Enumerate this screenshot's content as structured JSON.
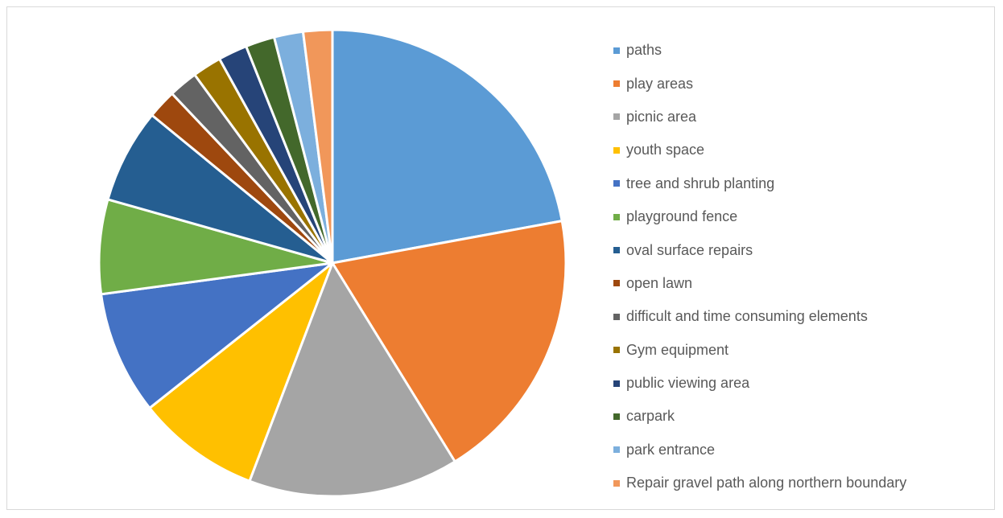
{
  "chart_data": {
    "type": "pie",
    "title": "",
    "legend_position": "right",
    "categories": [
      "paths",
      "play areas",
      "picnic area",
      "youth space",
      "tree and shrub planting",
      "playground fence",
      "oval surface repairs",
      "open lawn",
      "difficult and time consuming elements",
      "Gym equipment",
      "public viewing area",
      "carpark",
      "park entrance",
      "Repair gravel path along northern boundary"
    ],
    "values": [
      22.0,
      19.0,
      14.5,
      8.5,
      8.5,
      6.5,
      6.5,
      2.0,
      2.0,
      2.0,
      2.0,
      2.0,
      2.0,
      2.0
    ],
    "colors": [
      "#5b9bd5",
      "#ed7d31",
      "#a5a5a5",
      "#ffc000",
      "#4472c4",
      "#70ad47",
      "#255e91",
      "#9e480e",
      "#636363",
      "#997300",
      "#264478",
      "#43682b",
      "#7cafdd",
      "#f1975a"
    ]
  }
}
